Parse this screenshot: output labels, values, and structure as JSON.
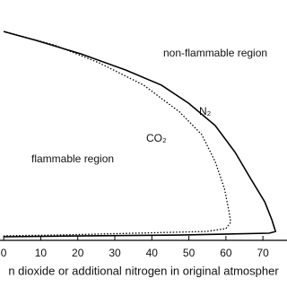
{
  "chart_data": {
    "type": "line",
    "xlabel": "n dioxide or additional nitrogen in original atmospher",
    "annotations": [
      "non-flammable region",
      "flammable region"
    ],
    "xlim": [
      -1,
      76.5
    ],
    "ylim": [
      0,
      100
    ],
    "xticks": [
      0,
      10,
      20,
      30,
      40,
      50,
      60,
      70
    ],
    "series": [
      {
        "name": "N₂",
        "color": "#000000",
        "style": "solid",
        "x": [
          0,
          8.7,
          20.8,
          32.9,
          42.6,
          49.9,
          57.1,
          62.5,
          66.8,
          70.5,
          72.4,
          73.4,
          71.7,
          47.5,
          23.2,
          0
        ],
        "values": [
          86.9,
          83.2,
          77.6,
          70.9,
          64.6,
          57.1,
          47.8,
          36.6,
          25.4,
          16.0,
          8.6,
          3.7,
          3.0,
          2.2,
          1.9,
          1.5
        ]
      },
      {
        "name": "CO₂",
        "color": "#000000",
        "style": "dotted",
        "x": [
          0,
          13.6,
          25.7,
          37.8,
          47.5,
          53.5,
          57.1,
          59.6,
          60.8,
          61.3,
          60.0,
          54.7,
          35.4,
          13.6,
          0
        ],
        "values": [
          86.9,
          81.3,
          73.9,
          64.6,
          53.4,
          44.0,
          32.8,
          21.6,
          12.3,
          7.5,
          4.9,
          3.7,
          3.0,
          2.2,
          1.9
        ]
      }
    ]
  }
}
